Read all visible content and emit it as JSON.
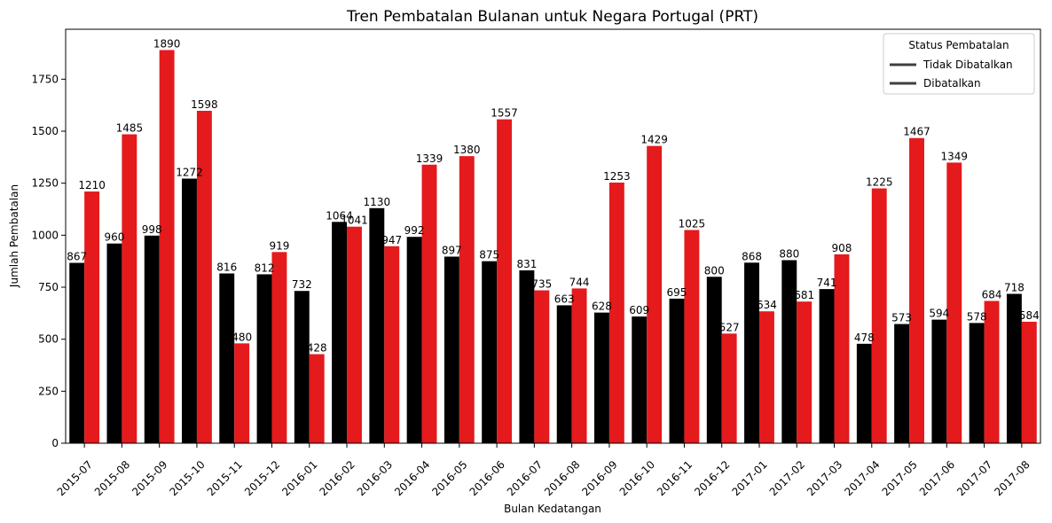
{
  "chart_data": {
    "type": "bar",
    "title": "Tren Pembatalan Bulanan untuk Negara Portugal (PRT)",
    "xlabel": "Bulan Kedatangan",
    "ylabel": "Jumlah Pembatalan",
    "ylim": [
      0,
      1990
    ],
    "yticks": [
      "0",
      "250",
      "500",
      "750",
      "1000",
      "1250",
      "1500",
      "1750"
    ],
    "ytick_values": [
      0,
      250,
      500,
      750,
      1000,
      1250,
      1500,
      1750
    ],
    "grid": false,
    "legend": {
      "title": "Status Pembatalan",
      "placement": "top-right"
    },
    "categories": [
      "2015-07",
      "2015-08",
      "2015-09",
      "2015-10",
      "2015-11",
      "2015-12",
      "2016-01",
      "2016-02",
      "2016-03",
      "2016-04",
      "2016-05",
      "2016-06",
      "2016-07",
      "2016-08",
      "2016-09",
      "2016-10",
      "2016-11",
      "2016-12",
      "2017-01",
      "2017-02",
      "2017-03",
      "2017-04",
      "2017-05",
      "2017-06",
      "2017-07",
      "2017-08"
    ],
    "series": [
      {
        "name": "Tidak Dibatalkan",
        "color": "#000000",
        "values": [
          867,
          960,
          998,
          1272,
          816,
          812,
          732,
          1064,
          1130,
          992,
          897,
          875,
          831,
          663,
          628,
          609,
          695,
          800,
          868,
          880,
          741,
          478,
          573,
          594,
          578,
          718
        ]
      },
      {
        "name": "Dibatalkan",
        "color": "#e41a1c",
        "values": [
          1210,
          1485,
          1890,
          1598,
          480,
          919,
          428,
          1041,
          947,
          1339,
          1380,
          1557,
          735,
          744,
          1253,
          1429,
          1025,
          527,
          634,
          681,
          908,
          1225,
          1467,
          1349,
          684,
          584
        ]
      }
    ],
    "legend_line_color": "#3f3f3f"
  }
}
